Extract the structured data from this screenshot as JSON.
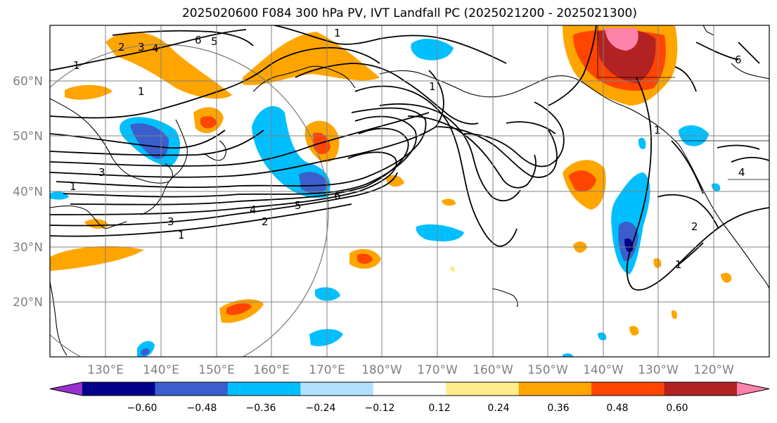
{
  "title": "2025020600 F084 300 hPa PV, IVT Landfall PC (2025021200 - 2025021300)",
  "map": {
    "longitude_labels": [
      "130°E",
      "140°E",
      "150°E",
      "160°E",
      "170°E",
      "180°W",
      "170°W",
      "160°W",
      "150°W",
      "140°W",
      "130°W",
      "120°W"
    ],
    "latitude_labels": [
      "60°N",
      "50°N",
      "40°N",
      "30°N",
      "20°N"
    ],
    "contour_labels": [
      "1",
      "2",
      "3",
      "4",
      "5",
      "6",
      "1",
      "1",
      "3",
      "1",
      "4",
      "5",
      "6",
      "2",
      "3",
      "1",
      "2",
      "1",
      "1",
      "6",
      "4",
      "1"
    ]
  },
  "colorbar": {
    "ticks": [
      "−0.60",
      "−0.48",
      "−0.36",
      "−0.24",
      "−0.12",
      "0.12",
      "0.24",
      "0.36",
      "0.48",
      "0.60"
    ],
    "colors": [
      "#9932cc",
      "#00008b",
      "#3a5fcd",
      "#00bfff",
      "#b0e2ff",
      "#ffffff",
      "#ffec8b",
      "#ffa500",
      "#ff4500",
      "#b22222",
      "#ff82ab"
    ]
  }
}
